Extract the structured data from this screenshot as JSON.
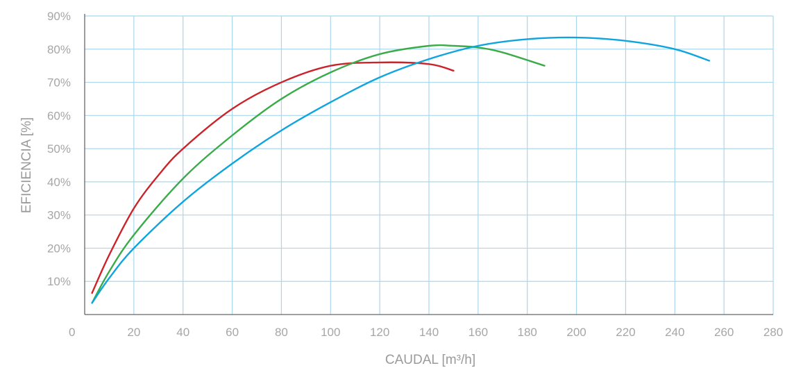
{
  "chart_data": {
    "type": "line",
    "title": "",
    "xlabel": "CAUDAL [m³/h]",
    "ylabel": "EFICIENCIA [%]",
    "xlim": [
      0,
      280
    ],
    "ylim": [
      0,
      90
    ],
    "x_ticks": [
      0,
      20,
      40,
      60,
      80,
      100,
      120,
      140,
      160,
      180,
      200,
      220,
      240,
      260,
      280
    ],
    "y_ticks": [
      10,
      20,
      30,
      40,
      50,
      60,
      70,
      80,
      90
    ],
    "y_tick_suffix": "%",
    "grid": true,
    "grid_color": "#a9d8ee",
    "axis_color": "#666666",
    "series": [
      {
        "color": "#cc2229",
        "x": [
          3,
          10,
          20,
          30,
          40,
          60,
          80,
          100,
          120,
          140,
          150
        ],
        "y": [
          6.5,
          18,
          32,
          42,
          50,
          62,
          70,
          75,
          76,
          75.5,
          73.5
        ]
      },
      {
        "color": "#3aab48",
        "x": [
          3,
          10,
          20,
          40,
          60,
          80,
          100,
          120,
          140,
          150,
          160,
          170,
          187
        ],
        "y": [
          3.5,
          13,
          24,
          41,
          54,
          65,
          73,
          78.5,
          81,
          81,
          80.5,
          79,
          75
        ]
      },
      {
        "color": "#0fa4dd",
        "x": [
          3,
          10,
          20,
          40,
          60,
          80,
          100,
          120,
          140,
          160,
          180,
          200,
          220,
          240,
          254
        ],
        "y": [
          3.5,
          11,
          20,
          34,
          45.5,
          55.5,
          64,
          71.5,
          77,
          81,
          83,
          83.5,
          82.5,
          80,
          76.5
        ]
      }
    ]
  }
}
